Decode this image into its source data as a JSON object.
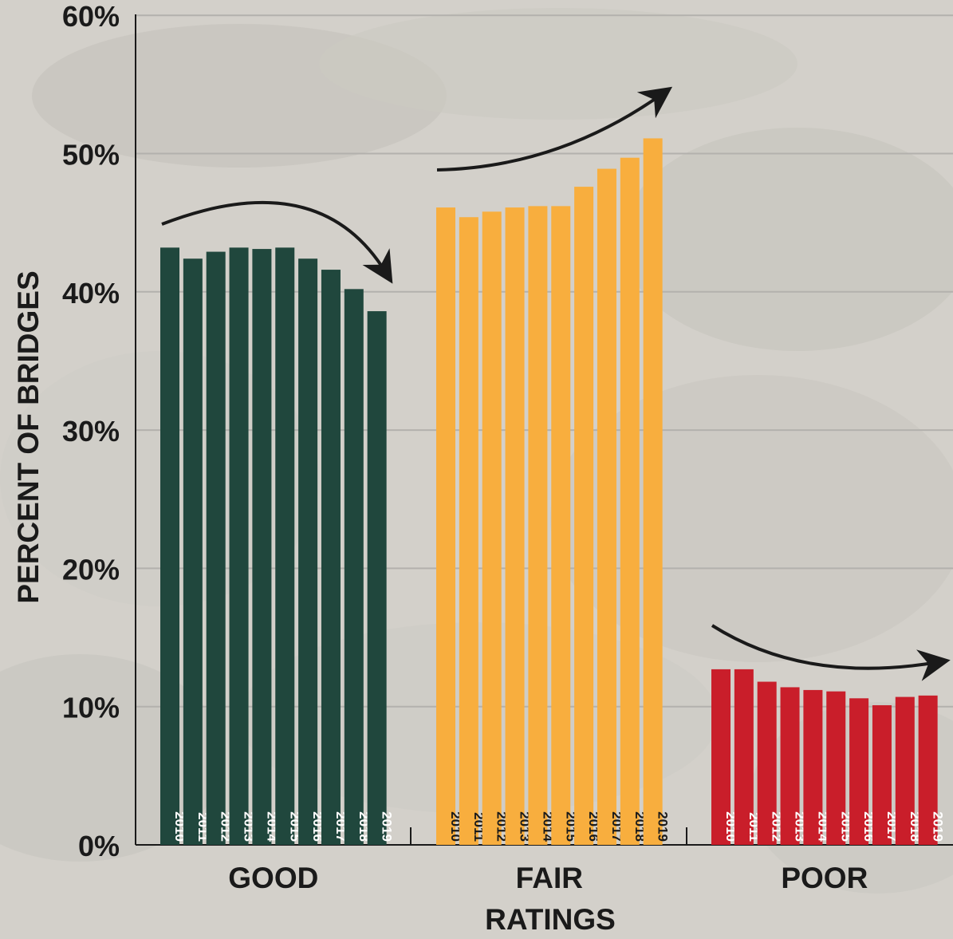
{
  "chart_data": {
    "type": "bar",
    "title": "",
    "xlabel": "RATINGS",
    "ylabel": "PERCENT OF BRIDGES",
    "ylim": [
      0,
      60
    ],
    "yticks": [
      "0%",
      "10%",
      "20%",
      "30%",
      "40%",
      "50%",
      "60%"
    ],
    "grid": true,
    "legend": "none",
    "categories": [
      "GOOD",
      "FAIR",
      "POOR"
    ],
    "series_labels": [
      "2010",
      "2011",
      "2012",
      "2013",
      "2014",
      "2015",
      "2016",
      "2017",
      "2018",
      "2019"
    ],
    "groups": [
      {
        "name": "GOOD",
        "color": "#20473d",
        "values": [
          43.2,
          42.4,
          42.9,
          43.2,
          43.1,
          43.2,
          42.4,
          41.6,
          40.2,
          38.6
        ]
      },
      {
        "name": "FAIR",
        "color": "#f8ae3e",
        "values": [
          46.1,
          45.4,
          45.8,
          46.1,
          46.2,
          46.2,
          47.6,
          48.9,
          49.7,
          51.1
        ]
      },
      {
        "name": "POOR",
        "color": "#c91e2a",
        "values": [
          12.7,
          12.7,
          11.8,
          11.4,
          11.2,
          11.1,
          10.6,
          10.1,
          10.7,
          10.8
        ]
      }
    ],
    "trend": [
      "down",
      "up",
      "down"
    ]
  },
  "colors": {
    "background": "#d3d0ca",
    "grid": "#b3b1ad",
    "axis": "#1a1a1a",
    "text": "#1a1a1a"
  }
}
